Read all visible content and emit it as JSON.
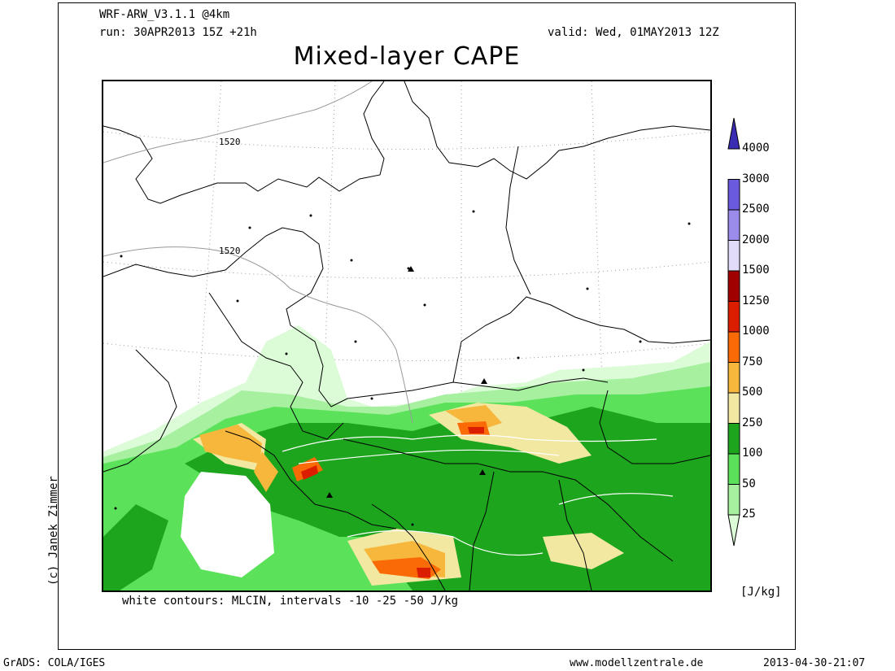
{
  "header": {
    "model": "WRF-ARW_V3.1.1 @4km",
    "run": "run: 30APR2013 15Z +21h",
    "valid": "valid: Wed, 01MAY2013 12Z",
    "title": "Mixed-layer CAPE"
  },
  "map": {
    "contour_labels": [
      "1520",
      "1520"
    ],
    "footnote": "white contours: MLCIN, intervals -10 -25 -50 J/kg"
  },
  "legend": {
    "units": "[J/kg]",
    "levels": [
      {
        "label": "25",
        "color": "#dcfcd8"
      },
      {
        "label": "50",
        "color": "#a6f0a0"
      },
      {
        "label": "100",
        "color": "#5ce25a"
      },
      {
        "label": "250",
        "color": "#1ea51e"
      },
      {
        "label": "500",
        "color": "#f2e8a2"
      },
      {
        "label": "750",
        "color": "#f7b73c"
      },
      {
        "label": "1000",
        "color": "#fa6a06"
      },
      {
        "label": "1250",
        "color": "#dc1e00"
      },
      {
        "label": "1500",
        "color": "#a00000"
      },
      {
        "label": "2000",
        "color": "#e1dcf7"
      },
      {
        "label": "2500",
        "color": "#9b8ceb"
      },
      {
        "label": "3000",
        "color": "#6a5ade"
      },
      {
        "label": "4000",
        "color": "#3a2db4"
      }
    ]
  },
  "credit": "(c) Janek Zimmer",
  "footer": {
    "software": "GrADS: COLA/IGES",
    "website": "www.modellzentrale.de",
    "timestamp": "2013-04-30-21:07"
  }
}
